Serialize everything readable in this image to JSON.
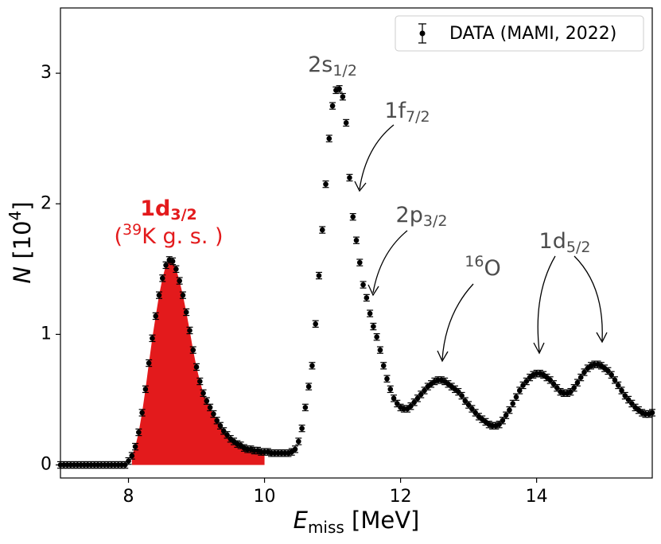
{
  "chart_data": {
    "type": "scatter",
    "x_label": {
      "main": "E",
      "sub": "miss",
      "after": " [MeV]"
    },
    "y_label": {
      "main": "N",
      "mid": " [10",
      "sup": "4",
      "after": "]"
    },
    "xlim": [
      7,
      15.7
    ],
    "ylim": [
      -0.1,
      3.5
    ],
    "xticks": [
      8,
      10,
      12,
      14
    ],
    "yticks": [
      0,
      1,
      2,
      3
    ],
    "legend_position": "upper right",
    "fill_range": [
      8.05,
      10.0
    ],
    "fill_color": "#e31a1c",
    "annotations": [
      {
        "text": "1d",
        "sub": "3/2"
      },
      {
        "open": "(",
        "sup": "39",
        "after": "K g. s. )"
      },
      {
        "text": "2s",
        "sub": "1/2"
      },
      {
        "text": "1f",
        "sub": "7/2"
      },
      {
        "text": "2p",
        "sub": "3/2"
      },
      {
        "sup": "16",
        "after": "O"
      },
      {
        "text": "1d",
        "sub": "5/2"
      }
    ],
    "series": [
      {
        "name": "DATA (MAMI, 2022)",
        "color": "#000000",
        "yerr": 0.025,
        "x": [
          7.0,
          7.05,
          7.1,
          7.15,
          7.2,
          7.25,
          7.3,
          7.35,
          7.4,
          7.45,
          7.5,
          7.55,
          7.6,
          7.65,
          7.7,
          7.75,
          7.8,
          7.85,
          7.9,
          7.95,
          8.0,
          8.05,
          8.1,
          8.15,
          8.2,
          8.25,
          8.3,
          8.35,
          8.4,
          8.45,
          8.5,
          8.55,
          8.6,
          8.65,
          8.7,
          8.75,
          8.8,
          8.85,
          8.9,
          8.95,
          9.0,
          9.05,
          9.1,
          9.15,
          9.2,
          9.25,
          9.3,
          9.35,
          9.4,
          9.45,
          9.5,
          9.55,
          9.6,
          9.65,
          9.7,
          9.75,
          9.8,
          9.85,
          9.9,
          9.95,
          10.0,
          10.05,
          10.1,
          10.15,
          10.2,
          10.25,
          10.3,
          10.35,
          10.4,
          10.45,
          10.5,
          10.55,
          10.6,
          10.65,
          10.7,
          10.75,
          10.8,
          10.85,
          10.9,
          10.95,
          11.0,
          11.05,
          11.1,
          11.15,
          11.2,
          11.25,
          11.3,
          11.35,
          11.4,
          11.45,
          11.5,
          11.55,
          11.6,
          11.65,
          11.7,
          11.75,
          11.8,
          11.85,
          11.9,
          11.95,
          12.0,
          12.05,
          12.1,
          12.15,
          12.2,
          12.25,
          12.3,
          12.35,
          12.4,
          12.45,
          12.5,
          12.55,
          12.6,
          12.65,
          12.7,
          12.75,
          12.8,
          12.85,
          12.9,
          12.95,
          13.0,
          13.05,
          13.1,
          13.15,
          13.2,
          13.25,
          13.3,
          13.35,
          13.4,
          13.45,
          13.5,
          13.55,
          13.6,
          13.65,
          13.7,
          13.75,
          13.8,
          13.85,
          13.9,
          13.95,
          14.0,
          14.05,
          14.1,
          14.15,
          14.2,
          14.25,
          14.3,
          14.35,
          14.4,
          14.45,
          14.5,
          14.55,
          14.6,
          14.65,
          14.7,
          14.75,
          14.8,
          14.85,
          14.9,
          14.95,
          15.0,
          15.05,
          15.1,
          15.15,
          15.2,
          15.25,
          15.3,
          15.35,
          15.4,
          15.45,
          15.5,
          15.55,
          15.6,
          15.65,
          15.7
        ],
        "values": [
          0,
          0,
          0,
          0,
          0,
          0,
          0,
          0,
          0,
          0,
          0,
          0,
          0,
          0,
          0,
          0,
          0,
          0,
          0,
          0,
          0.03,
          0.07,
          0.14,
          0.25,
          0.4,
          0.58,
          0.78,
          0.97,
          1.14,
          1.3,
          1.43,
          1.53,
          1.57,
          1.56,
          1.5,
          1.41,
          1.3,
          1.17,
          1.03,
          0.88,
          0.75,
          0.64,
          0.55,
          0.49,
          0.44,
          0.39,
          0.34,
          0.3,
          0.26,
          0.23,
          0.2,
          0.18,
          0.16,
          0.15,
          0.13,
          0.12,
          0.12,
          0.11,
          0.11,
          0.1,
          0.1,
          0.1,
          0.09,
          0.09,
          0.09,
          0.09,
          0.09,
          0.09,
          0.1,
          0.12,
          0.18,
          0.28,
          0.44,
          0.6,
          0.76,
          1.08,
          1.45,
          1.8,
          2.15,
          2.5,
          2.75,
          2.87,
          2.88,
          2.82,
          2.62,
          2.2,
          1.9,
          1.72,
          1.55,
          1.38,
          1.28,
          1.16,
          1.06,
          0.98,
          0.88,
          0.76,
          0.66,
          0.58,
          0.51,
          0.47,
          0.44,
          0.43,
          0.43,
          0.45,
          0.48,
          0.51,
          0.54,
          0.57,
          0.6,
          0.62,
          0.64,
          0.65,
          0.65,
          0.64,
          0.62,
          0.6,
          0.58,
          0.56,
          0.53,
          0.49,
          0.46,
          0.43,
          0.4,
          0.37,
          0.35,
          0.33,
          0.31,
          0.3,
          0.3,
          0.31,
          0.34,
          0.38,
          0.42,
          0.47,
          0.52,
          0.57,
          0.61,
          0.64,
          0.67,
          0.69,
          0.7,
          0.7,
          0.69,
          0.67,
          0.65,
          0.62,
          0.59,
          0.56,
          0.55,
          0.55,
          0.56,
          0.59,
          0.63,
          0.67,
          0.71,
          0.74,
          0.76,
          0.77,
          0.77,
          0.76,
          0.74,
          0.72,
          0.69,
          0.65,
          0.61,
          0.57,
          0.53,
          0.5,
          0.47,
          0.44,
          0.42,
          0.4,
          0.39,
          0.39,
          0.4
        ]
      }
    ]
  }
}
